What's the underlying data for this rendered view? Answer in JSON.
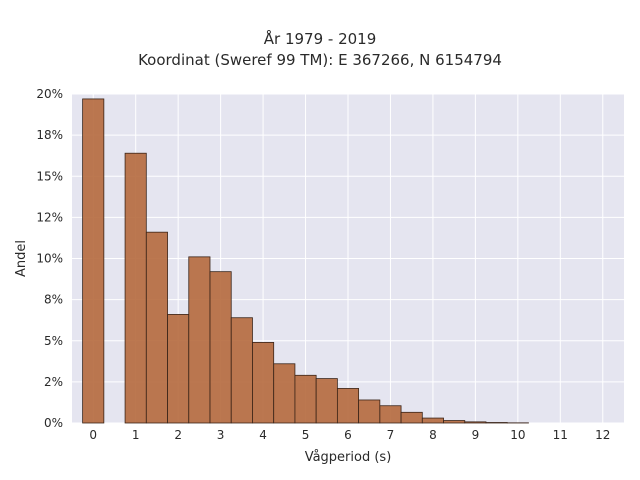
{
  "chart_data": {
    "type": "bar",
    "title": "År 1979 - 2019",
    "subtitle": "Koordinat (Sweref 99 TM): E 367266, N 6154794",
    "xlabel": "Vågperiod (s)",
    "ylabel": "Andel",
    "x_ticks": [
      "0",
      "1",
      "2",
      "3",
      "4",
      "5",
      "6",
      "7",
      "8",
      "9",
      "10",
      "11",
      "12"
    ],
    "y_ticks": [
      "0%",
      "2%",
      "5%",
      "8%",
      "10%",
      "12%",
      "15%",
      "18%",
      "20%"
    ],
    "y_tick_values": [
      0,
      2.5,
      5,
      7.5,
      10,
      12.5,
      15,
      17.5,
      20
    ],
    "xlim": [
      -0.5,
      12.5
    ],
    "ylim": [
      0,
      20
    ],
    "bin_width": 0.5,
    "bins": [
      {
        "x": 0.0,
        "value": 19.7
      },
      {
        "x": 1.0,
        "value": 16.4
      },
      {
        "x": 1.5,
        "value": 11.6
      },
      {
        "x": 2.0,
        "value": 6.6
      },
      {
        "x": 2.5,
        "value": 10.1
      },
      {
        "x": 3.0,
        "value": 9.2
      },
      {
        "x": 3.5,
        "value": 6.4
      },
      {
        "x": 4.0,
        "value": 4.9
      },
      {
        "x": 4.5,
        "value": 3.6
      },
      {
        "x": 5.0,
        "value": 2.9
      },
      {
        "x": 5.5,
        "value": 2.7
      },
      {
        "x": 6.0,
        "value": 2.1
      },
      {
        "x": 6.5,
        "value": 1.4
      },
      {
        "x": 7.0,
        "value": 1.05
      },
      {
        "x": 7.5,
        "value": 0.65
      },
      {
        "x": 8.0,
        "value": 0.3
      },
      {
        "x": 8.5,
        "value": 0.15
      },
      {
        "x": 9.0,
        "value": 0.07
      },
      {
        "x": 9.5,
        "value": 0.03
      },
      {
        "x": 10.0,
        "value": 0.01
      }
    ],
    "bar_color": "#b5693d",
    "bar_edge_color": "#3a2418",
    "plot_background": "#e5e5f0",
    "grid": true,
    "legend": "none"
  }
}
